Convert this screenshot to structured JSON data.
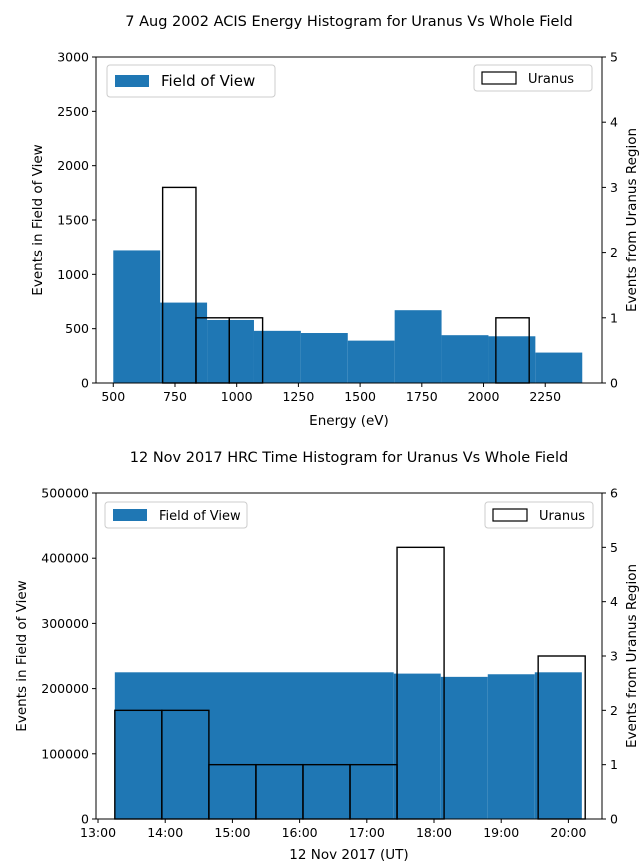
{
  "chart_data": [
    {
      "type": "bar",
      "title": "7 Aug 2002 ACIS Energy Histogram for Uranus Vs Whole Field",
      "xlabel": "Energy (eV)",
      "ylabel": "Events in Field of View",
      "ylabel_right": "Events from Uranus Region",
      "xlim": [
        430,
        2480
      ],
      "ylim": [
        0,
        3000
      ],
      "ylim_right": [
        0,
        5
      ],
      "x_ticks": [
        500,
        750,
        1000,
        1250,
        1500,
        1750,
        2000,
        2250
      ],
      "x_tick_labels": [
        "500",
        "750",
        "1000",
        "1250",
        "1500",
        "1750",
        "2000",
        "2250"
      ],
      "y_ticks": [
        0,
        500,
        1000,
        1500,
        2000,
        2500,
        3000
      ],
      "y_tick_labels": [
        "0",
        "500",
        "1000",
        "1500",
        "2000",
        "2500",
        "3000"
      ],
      "y_right_ticks": [
        0,
        1,
        2,
        3,
        4,
        5
      ],
      "y_right_tick_labels": [
        "0",
        "1",
        "2",
        "3",
        "4",
        "5"
      ],
      "legend_placement": "top-left and top-right",
      "series": [
        {
          "name": "Field of View",
          "axis": "left",
          "style": "filled",
          "color": "#1f77b4",
          "bin_edges": [
            500,
            690,
            880,
            1070,
            1260,
            1450,
            1640,
            1830,
            2020,
            2210,
            2400
          ],
          "counts": [
            1220,
            740,
            580,
            480,
            460,
            390,
            670,
            440,
            430,
            280
          ]
        },
        {
          "name": "Uranus",
          "axis": "right",
          "style": "outline",
          "color": "#000000",
          "bin_edges": [
            700,
            835,
            970,
            1105,
            1240,
            1375,
            1510,
            1645,
            1780,
            1915,
            2050,
            2185
          ],
          "counts": [
            3,
            1,
            1,
            0,
            0,
            0,
            0,
            0,
            0,
            0,
            1
          ]
        }
      ]
    },
    {
      "type": "bar",
      "title": "12 Nov 2017 HRC Time Histogram for Uranus Vs Whole Field",
      "xlabel": "12 Nov 2017 (UT)",
      "ylabel": "Events in Field of View",
      "ylabel_right": "Events from Uranus Region",
      "xlim": [
        12.97,
        20.5
      ],
      "ylim": [
        0,
        500000
      ],
      "ylim_right": [
        0,
        6
      ],
      "x_ticks": [
        13,
        14,
        15,
        16,
        17,
        18,
        19,
        20
      ],
      "x_tick_labels": [
        "13:00",
        "14:00",
        "15:00",
        "16:00",
        "17:00",
        "18:00",
        "19:00",
        "20:00"
      ],
      "y_ticks": [
        0,
        100000,
        200000,
        300000,
        400000,
        500000
      ],
      "y_tick_labels": [
        "0",
        "100000",
        "200000",
        "300000",
        "400000",
        "500000"
      ],
      "y_right_ticks": [
        0,
        1,
        2,
        3,
        4,
        5,
        6
      ],
      "y_right_tick_labels": [
        "0",
        "1",
        "2",
        "3",
        "4",
        "5",
        "6"
      ],
      "legend_placement": "top-left and top-right",
      "series": [
        {
          "name": "Field of View",
          "axis": "left",
          "style": "filled",
          "color": "#1f77b4",
          "bin_edges": [
            13.25,
            17.4,
            18.1,
            18.8,
            19.5,
            20.2
          ],
          "counts": [
            225000,
            223000,
            218000,
            222000,
            225000
          ]
        },
        {
          "name": "Uranus",
          "axis": "right",
          "style": "outline",
          "color": "#000000",
          "bin_edges": [
            13.25,
            13.95,
            14.65,
            15.35,
            16.05,
            16.75,
            17.45,
            18.15,
            18.85,
            19.55,
            20.25
          ],
          "counts": [
            2,
            2,
            1,
            1,
            1,
            1,
            5,
            0,
            0,
            3
          ]
        }
      ]
    }
  ]
}
